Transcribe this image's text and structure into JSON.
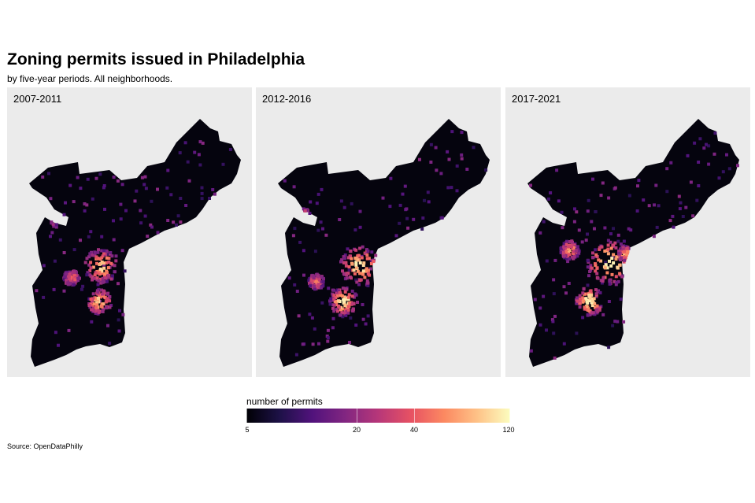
{
  "title": "Zoning permits issued in Philadelphia",
  "subtitle": "by five-year periods. All neighborhoods.",
  "panels": [
    {
      "label": "2007-2011"
    },
    {
      "label": "2012-2016"
    },
    {
      "label": "2017-2021"
    }
  ],
  "legend": {
    "title": "number of permits",
    "ticks": [
      "5",
      "20",
      "40",
      "120"
    ],
    "tick_values": [
      5,
      20,
      40,
      120
    ],
    "scale": "log",
    "palette": [
      "#000004",
      "#1d1147",
      "#51127c",
      "#822681",
      "#b73779",
      "#e75263",
      "#fc8961",
      "#fec287",
      "#fcfdbf"
    ]
  },
  "source": "Source: OpenDataPhilly",
  "colors": {
    "panel_background": "#ebebeb",
    "city_fill": "#05040e"
  }
}
